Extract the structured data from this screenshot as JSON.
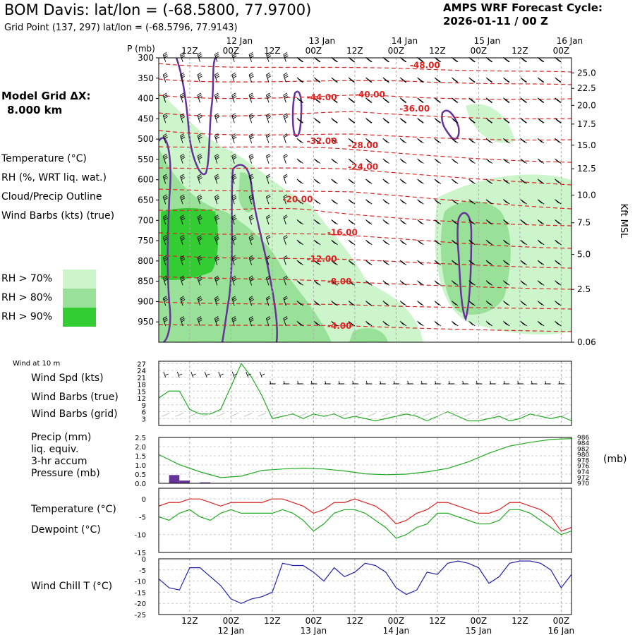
{
  "header": {
    "title": "BOM Davis:  lat/lon = (-68.5800, 77.9700)",
    "grid_point": "Grid Point (137, 297) lat/lon = (-68.5796, 77.9143)",
    "forecast_title": "AMPS WRF Forecast Cycle:",
    "forecast_cycle": "2026-01-11 / 00  Z"
  },
  "left_panel": {
    "grid_dx_label": "Model Grid ΔX:",
    "grid_dx_value": "8.000 km",
    "legend": [
      {
        "text": "Temperature (°C)",
        "color": "#dd2222"
      },
      {
        "text": "RH (%, WRT liq. wat.)",
        "color": "#22aa22"
      },
      {
        "text": "Cloud/Precip Outline",
        "color": "#663399"
      },
      {
        "text": "Wind Barbs (kts) (true)",
        "color": "#000000"
      }
    ],
    "rh_keys": [
      {
        "label": "RH > 70%",
        "color": "#ccf5cc"
      },
      {
        "label": "RH > 80%",
        "color": "#99e099"
      },
      {
        "label": "RH > 90%",
        "color": "#33cc33"
      }
    ]
  },
  "colors": {
    "temperature": "#dd2222",
    "rh": "#22aa22",
    "cloud": "#663399",
    "wind_chill": "#2222aa",
    "grid": "#aaaaaa"
  },
  "chart_data": [
    {
      "type": "heatmap",
      "name": "cross-section",
      "pressure_label": "P (mb)",
      "y_ticks": [
        300,
        350,
        400,
        450,
        500,
        550,
        600,
        650,
        700,
        750,
        800,
        850,
        900,
        950
      ],
      "ylim": [
        1000,
        300
      ],
      "right_axis_label": "Kft MSL",
      "right_ticks": [
        "25.0",
        "22.5",
        "20.0",
        "17.5",
        "15.0",
        "12.5",
        "10.0",
        "7.5",
        "5.0",
        "2.5",
        "0.06"
      ],
      "right_tick_pressures": [
        337,
        375,
        417,
        463,
        515,
        573,
        638,
        706,
        784,
        870,
        1000
      ],
      "x_hours": [
        0,
        120
      ],
      "time_ticks": [
        {
          "label": "12Z",
          "date": "",
          "hour": 9
        },
        {
          "label": "00Z",
          "date": "12 Jan",
          "hour": 21
        },
        {
          "label": "12Z",
          "date": "",
          "hour": 33
        },
        {
          "label": "00Z",
          "date": "13 Jan",
          "hour": 45
        },
        {
          "label": "12Z",
          "date": "",
          "hour": 57
        },
        {
          "label": "00Z",
          "date": "14 Jan",
          "hour": 69
        },
        {
          "label": "12Z",
          "date": "",
          "hour": 81
        },
        {
          "label": "00Z",
          "date": "15 Jan",
          "hour": 93
        },
        {
          "label": "12Z",
          "date": "",
          "hour": 105
        },
        {
          "label": "00Z",
          "date": "16 Jan",
          "hour": 117
        }
      ],
      "isotherm_labels": [
        {
          "text": "-48.00",
          "hour": 73,
          "p": 318
        },
        {
          "text": "-44.00",
          "hour": 43,
          "p": 397
        },
        {
          "text": "-40.00",
          "hour": 57,
          "p": 390
        },
        {
          "text": "-36.00",
          "hour": 70,
          "p": 425
        },
        {
          "text": "-32.00",
          "hour": 43,
          "p": 505
        },
        {
          "text": "-28.00",
          "hour": 55,
          "p": 515
        },
        {
          "text": "-24.00",
          "hour": 55,
          "p": 568
        },
        {
          "text": "-20.00",
          "hour": 36,
          "p": 648
        },
        {
          "text": "-16.00",
          "hour": 49,
          "p": 730
        },
        {
          "text": "-12.00",
          "hour": 43,
          "p": 795
        },
        {
          "text": "-8.00",
          "hour": 49,
          "p": 851
        },
        {
          "text": "-4.00",
          "hour": 49,
          "p": 960
        }
      ]
    },
    {
      "type": "line",
      "name": "wind-10m",
      "corner_label": "Wind at 10 m",
      "labels": [
        {
          "text": "Wind Spd (kts)",
          "color": "#22aa22"
        },
        {
          "text": "Wind Barbs (true)",
          "color": "#000000"
        },
        {
          "text": "Wind Barbs (grid)",
          "color": "#bbbbbb"
        }
      ],
      "y_ticks": [
        3,
        6,
        9,
        12,
        15,
        18,
        21,
        24,
        27
      ],
      "ylim": [
        0,
        28
      ],
      "series": [
        {
          "name": "Wind Spd (kts)",
          "color": "#22aa22",
          "x": [
            0,
            3,
            6,
            9,
            12,
            15,
            18,
            21,
            24,
            27,
            30,
            33,
            36,
            39,
            42,
            45,
            48,
            51,
            54,
            57,
            60,
            63,
            66,
            69,
            72,
            75,
            78,
            81,
            84,
            87,
            90,
            93,
            96,
            99,
            102,
            105,
            108,
            111,
            114,
            117,
            120
          ],
          "values": [
            12,
            15,
            15,
            7,
            5,
            5,
            7,
            17,
            27,
            21,
            13,
            3,
            4,
            5,
            3,
            5,
            4,
            5,
            3,
            4,
            3,
            2,
            3,
            4,
            5,
            4,
            2,
            4,
            6,
            4,
            2,
            2,
            3,
            4,
            2,
            3,
            5,
            4,
            3,
            4,
            2
          ]
        }
      ]
    },
    {
      "type": "line",
      "name": "precip-pressure",
      "labels": [
        {
          "text": "Precip (mm)",
          "color": "#663399"
        },
        {
          "text": "liq. equiv.",
          "color": "#663399"
        },
        {
          "text": "3-hr accum",
          "color": "#663399"
        },
        {
          "text": "Pressure (mb)",
          "color": "#22aa22"
        }
      ],
      "y_ticks": [
        "0.0",
        "0.5",
        "1.0",
        "1.5",
        "2.0",
        "2.5"
      ],
      "ylim": [
        0,
        2.5
      ],
      "right_ticks": [
        970,
        972,
        974,
        976,
        978,
        980,
        982,
        984,
        986
      ],
      "right_ylim": [
        970,
        986
      ],
      "right_unit": "(mb)",
      "precip_bars": [
        {
          "start": 3,
          "end": 6,
          "value": 0.45
        },
        {
          "start": 6,
          "end": 9,
          "value": 0.15
        },
        {
          "start": 12,
          "end": 15,
          "value": 0.05
        }
      ],
      "series": [
        {
          "name": "Pressure (mb)",
          "color": "#22aa22",
          "x": [
            0,
            6,
            12,
            18,
            24,
            30,
            36,
            42,
            48,
            54,
            60,
            66,
            72,
            78,
            84,
            90,
            96,
            102,
            108,
            114,
            120
          ],
          "values": [
            980.0,
            976.5,
            974.0,
            972.0,
            972.5,
            974.5,
            975.0,
            975.3,
            975.0,
            974.3,
            973.3,
            973.0,
            973.2,
            974.0,
            975.2,
            977.5,
            980.5,
            983.0,
            984.3,
            985.3,
            985.6
          ]
        }
      ]
    },
    {
      "type": "line",
      "name": "temperature-dewpoint",
      "labels": [
        {
          "text": "Temperature (°C)",
          "color": "#dd2222"
        },
        {
          "text": "Dewpoint (°C)",
          "color": "#22aa22"
        }
      ],
      "y_ticks": [
        0,
        -5,
        -10,
        -15
      ],
      "ylim": [
        -15,
        3
      ],
      "series": [
        {
          "name": "Temperature (°C)",
          "color": "#dd2222",
          "x": [
            0,
            3,
            6,
            9,
            12,
            15,
            18,
            21,
            24,
            27,
            30,
            33,
            36,
            39,
            42,
            45,
            48,
            51,
            54,
            57,
            60,
            63,
            66,
            69,
            72,
            75,
            78,
            81,
            84,
            87,
            90,
            93,
            96,
            99,
            102,
            105,
            108,
            111,
            114,
            117,
            120
          ],
          "values": [
            -2,
            -1,
            -1,
            0,
            0,
            -1,
            -2,
            -1,
            -1,
            -1,
            -1,
            0,
            0,
            -1,
            -2,
            -4,
            -3,
            -1,
            -1,
            0,
            -1,
            -2,
            -4,
            -7,
            -6,
            -4,
            -3,
            -1,
            -1,
            -2,
            -3,
            -4,
            -4,
            -3,
            -1,
            -1,
            -2,
            -3,
            -5,
            -9,
            -8
          ]
        },
        {
          "name": "Dewpoint (°C)",
          "color": "#22aa22",
          "x": [
            0,
            3,
            6,
            9,
            12,
            15,
            18,
            21,
            24,
            27,
            30,
            33,
            36,
            39,
            42,
            45,
            48,
            51,
            54,
            57,
            60,
            63,
            66,
            69,
            72,
            75,
            78,
            81,
            84,
            87,
            90,
            93,
            96,
            99,
            102,
            105,
            108,
            111,
            114,
            117,
            120
          ],
          "values": [
            -5,
            -6,
            -4,
            -3,
            -5,
            -6,
            -4,
            -3,
            -4,
            -4,
            -4,
            -4,
            -3,
            -4,
            -6,
            -9,
            -7,
            -4,
            -3,
            -3,
            -4,
            -6,
            -8,
            -11,
            -10,
            -8,
            -7,
            -4,
            -4,
            -5,
            -6,
            -7,
            -7,
            -6,
            -3,
            -3,
            -4,
            -6,
            -8,
            -10,
            -9
          ]
        }
      ]
    },
    {
      "type": "line",
      "name": "wind-chill",
      "labels": [
        {
          "text": "Wind Chill T (°C)",
          "color": "#2222aa"
        }
      ],
      "y_ticks": [
        0,
        -5,
        -10,
        -15,
        -20,
        -25
      ],
      "ylim": [
        -25,
        0
      ],
      "series": [
        {
          "name": "Wind Chill T (°C)",
          "color": "#2222aa",
          "x": [
            0,
            3,
            6,
            9,
            12,
            15,
            18,
            21,
            24,
            27,
            30,
            33,
            36,
            39,
            42,
            45,
            48,
            51,
            54,
            57,
            60,
            63,
            66,
            69,
            72,
            75,
            78,
            81,
            84,
            87,
            90,
            93,
            96,
            99,
            102,
            105,
            108,
            111,
            114,
            117,
            120
          ],
          "values": [
            -9,
            -13,
            -14,
            -4,
            -4,
            -8,
            -12,
            -18,
            -20,
            -18,
            -17,
            -15,
            -2,
            -3,
            -3,
            -6,
            -10,
            -4,
            -8,
            -6,
            -2,
            -3,
            -6,
            -13,
            -16,
            -14,
            -6,
            -7,
            -2,
            -1,
            -2,
            -4,
            -11,
            -8,
            -2,
            -1,
            -1,
            -2,
            -5,
            -13,
            -7
          ]
        }
      ]
    }
  ]
}
